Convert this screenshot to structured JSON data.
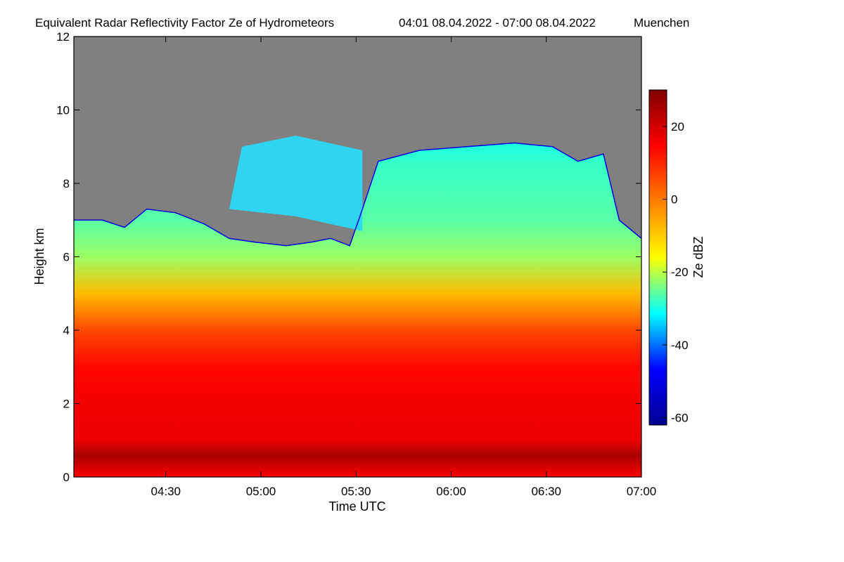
{
  "chart_data": {
    "type": "heatmap",
    "title": "Equivalent Radar Reflectivity Factor Ze of Hydrometeors",
    "time_range_label": "04:01 08.04.2022 - 07:00 08.04.2022",
    "location": "Muenchen",
    "xlabel": "Time UTC",
    "ylabel": "Height km",
    "colorbar_label": "Ze dBZ",
    "x_tick_labels": [
      "04:30",
      "05:00",
      "05:30",
      "06:00",
      "06:30",
      "07:00"
    ],
    "x_tick_minutes": [
      30,
      60,
      90,
      120,
      150,
      180
    ],
    "xlim_minutes": [
      1,
      180
    ],
    "y_ticks": [
      0,
      2,
      4,
      6,
      8,
      10,
      12
    ],
    "ylim": [
      0,
      12
    ],
    "colorbar_ticks": [
      20,
      0,
      -20,
      -40,
      -60
    ],
    "colorbar_range": [
      -62,
      30
    ],
    "missing_color": "#808080",
    "colormap": [
      "#00008f",
      "#0000ff",
      "#00ffff",
      "#ffff00",
      "#ff7f00",
      "#ff0000",
      "#7f0000"
    ],
    "echo_top_km": [
      {
        "t": 1,
        "h": 7.0
      },
      {
        "t": 10,
        "h": 7.0
      },
      {
        "t": 17,
        "h": 6.8
      },
      {
        "t": 24,
        "h": 7.3
      },
      {
        "t": 33,
        "h": 7.2
      },
      {
        "t": 42,
        "h": 6.9
      },
      {
        "t": 50,
        "h": 6.5
      },
      {
        "t": 58,
        "h": 6.4
      },
      {
        "t": 68,
        "h": 6.3
      },
      {
        "t": 76,
        "h": 6.4
      },
      {
        "t": 82,
        "h": 6.5
      },
      {
        "t": 88,
        "h": 6.3
      },
      {
        "t": 92,
        "h": 7.3
      },
      {
        "t": 97,
        "h": 8.6
      },
      {
        "t": 110,
        "h": 8.9
      },
      {
        "t": 125,
        "h": 9.0
      },
      {
        "t": 140,
        "h": 9.1
      },
      {
        "t": 152,
        "h": 9.0
      },
      {
        "t": 160,
        "h": 8.6
      },
      {
        "t": 168,
        "h": 8.8
      },
      {
        "t": 173,
        "h": 7.0
      },
      {
        "t": 180,
        "h": 6.5
      }
    ],
    "upper_layer": {
      "t_start": 50,
      "t_end": 92,
      "h_bottom": 7.3,
      "h_top": 9.3
    },
    "layers_dBZ": [
      {
        "h": 0.0,
        "dBZ": 15
      },
      {
        "h": 0.6,
        "dBZ": 25
      },
      {
        "h": 1.0,
        "dBZ": 17
      },
      {
        "h": 2.0,
        "dBZ": 16
      },
      {
        "h": 3.0,
        "dBZ": 14
      },
      {
        "h": 4.0,
        "dBZ": 6
      },
      {
        "h": 5.0,
        "dBZ": -8
      },
      {
        "h": 6.0,
        "dBZ": -22
      },
      {
        "h": 7.0,
        "dBZ": -26
      },
      {
        "h": 8.5,
        "dBZ": -28
      },
      {
        "h": 9.2,
        "dBZ": -30
      }
    ]
  }
}
